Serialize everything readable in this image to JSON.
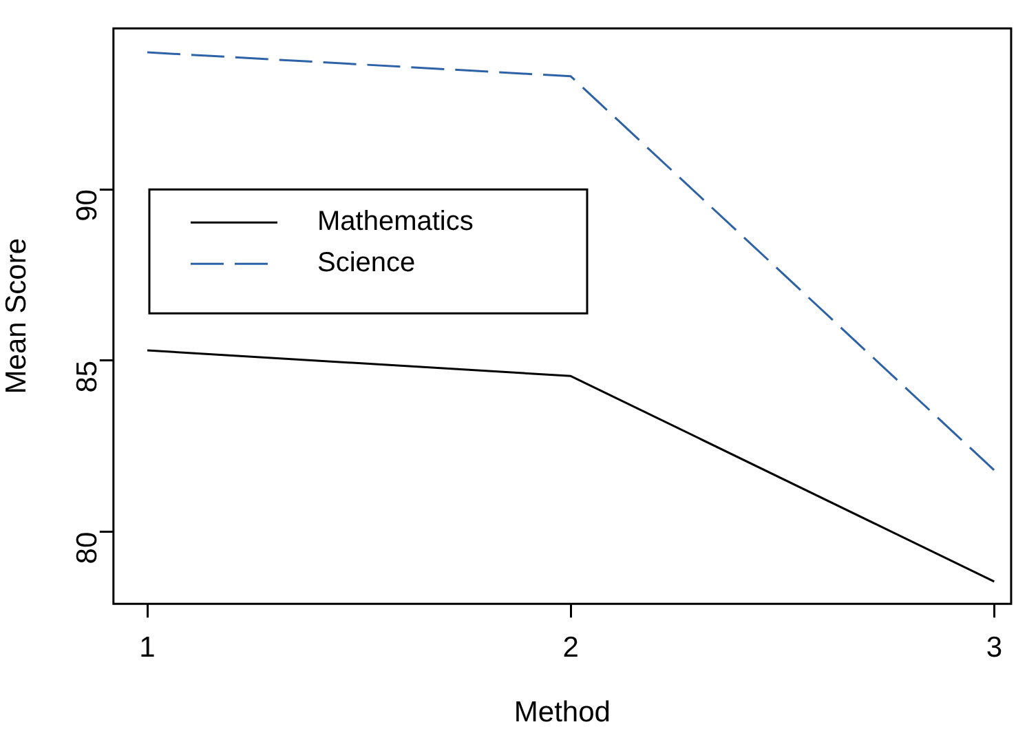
{
  "chart_data": {
    "type": "line",
    "xlabel": "Method",
    "ylabel": "Mean Score",
    "x": [
      1,
      2,
      3
    ],
    "series": [
      {
        "name": "Mathematics",
        "color": "#000000",
        "line_style": "solid",
        "values": [
          85.3,
          84.55,
          78.55
        ]
      },
      {
        "name": "Science",
        "color": "#2e62a6",
        "line_style": "dashed",
        "values": [
          94.0,
          93.3,
          81.8
        ]
      }
    ],
    "xlim": [
      0.92,
      3.04
    ],
    "xticks": [
      1,
      2,
      3
    ],
    "ylim": [
      77.9,
      94.7
    ],
    "yticks": [
      80,
      85,
      90
    ],
    "grid": false,
    "legend": "left",
    "marker": "none"
  }
}
